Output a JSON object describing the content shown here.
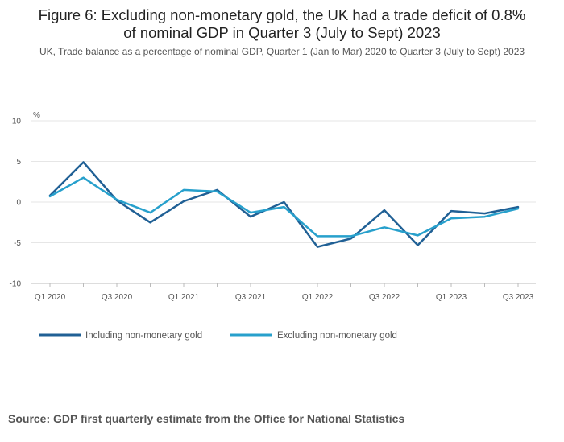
{
  "title_line1": "Figure 6: Excluding non-monetary gold, the UK had a trade deficit of 0.8%",
  "title_line2": "of nominal GDP in Quarter 3 (July to Sept) 2023",
  "subtitle": "UK, Trade balance as a percentage of nominal GDP, Quarter 1 (Jan to Mar) 2020 to Quarter 3 (July to Sept) 2023",
  "source": "Source: GDP first quarterly estimate from the Office for National Statistics",
  "chart_data": {
    "type": "line",
    "title": "Figure 6: Excluding non-monetary gold, the UK had a trade deficit of 0.8% of nominal GDP in Quarter 3 (July to Sept) 2023",
    "subtitle": "UK, Trade balance as a percentage of nominal GDP, Quarter 1 (Jan to Mar) 2020 to Quarter 3 (July to Sept) 2023",
    "ylabel": "%",
    "xlabel": "",
    "ylim": [
      -10,
      10
    ],
    "yticks": [
      -10,
      -5,
      0,
      5,
      10
    ],
    "grid": true,
    "legend_position": "bottom-left",
    "categories": [
      "Q1 2020",
      "Q2 2020",
      "Q3 2020",
      "Q4 2020",
      "Q1 2021",
      "Q2 2021",
      "Q3 2021",
      "Q4 2021",
      "Q1 2022",
      "Q2 2022",
      "Q3 2022",
      "Q4 2022",
      "Q1 2023",
      "Q2 2023",
      "Q3 2023"
    ],
    "tick_labels": [
      "Q1 2020",
      "Q3 2020",
      "Q1 2021",
      "Q3 2021",
      "Q1 2022",
      "Q3 2022",
      "Q1 2023",
      "Q3 2023"
    ],
    "series": [
      {
        "name": "Including non-monetary gold",
        "color": "#206095",
        "values": [
          0.8,
          4.9,
          0.2,
          -2.5,
          0.1,
          1.5,
          -1.8,
          0.0,
          -5.5,
          -4.5,
          -1.0,
          -5.3,
          -1.1,
          -1.4,
          -0.6
        ]
      },
      {
        "name": "Excluding non-monetary gold",
        "color": "#27a0cc",
        "values": [
          0.7,
          3.0,
          0.3,
          -1.3,
          1.5,
          1.3,
          -1.3,
          -0.6,
          -4.2,
          -4.2,
          -3.1,
          -4.1,
          -2.0,
          -1.8,
          -0.8
        ]
      }
    ]
  }
}
